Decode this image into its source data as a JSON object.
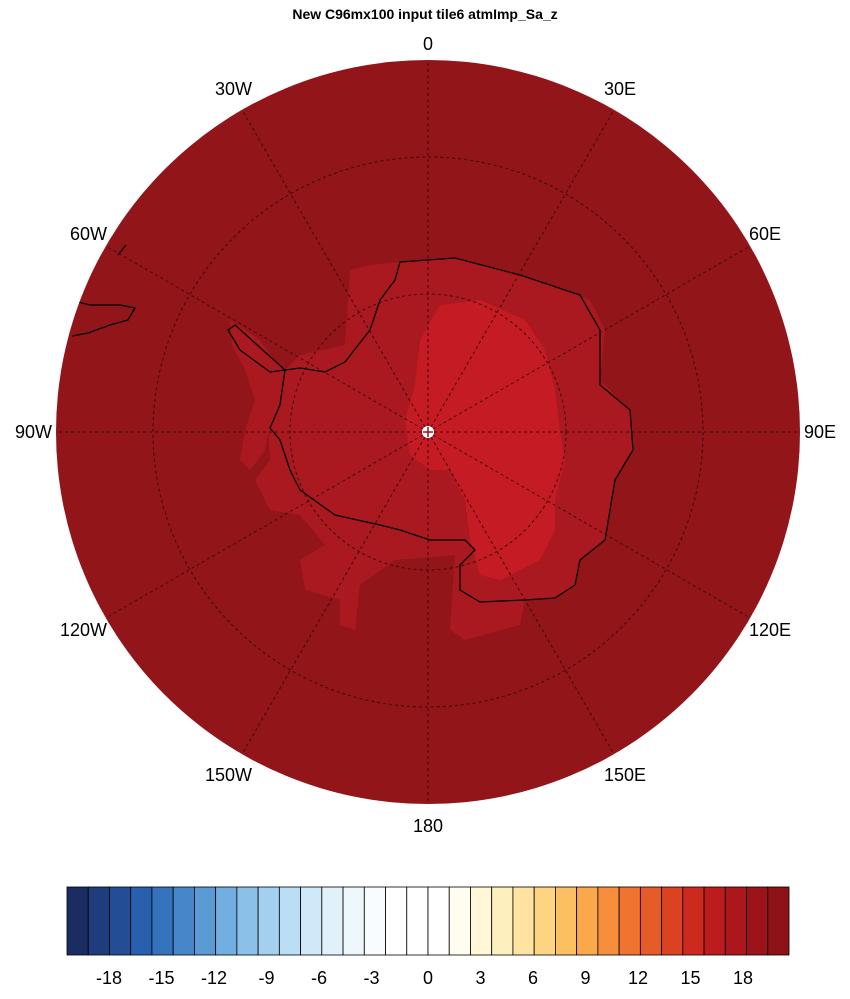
{
  "title": "New C96mx100 input tile6 atmImp_Sa_z",
  "map": {
    "projection": "south-polar-stereographic",
    "longitude_labels": [
      {
        "lon": 0,
        "text": "0"
      },
      {
        "lon": 30,
        "text": "30E"
      },
      {
        "lon": 60,
        "text": "60E"
      },
      {
        "lon": 90,
        "text": "90E"
      },
      {
        "lon": 120,
        "text": "120E"
      },
      {
        "lon": 150,
        "text": "150E"
      },
      {
        "lon": 180,
        "text": "180"
      },
      {
        "lon": -150,
        "text": "150W"
      },
      {
        "lon": -120,
        "text": "120W"
      },
      {
        "lon": -90,
        "text": "90W"
      },
      {
        "lon": -60,
        "text": "60W"
      },
      {
        "lon": -30,
        "text": "30W"
      }
    ],
    "colors": {
      "ocean_fill": "#921519",
      "land_outer": "#a9191f",
      "land_inner": "#c41b24",
      "coastline": "#000000",
      "grid": "#3a0a0c"
    }
  },
  "colorbar": {
    "ticks": [
      "-18",
      "-15",
      "-12",
      "-9",
      "-6",
      "-3",
      "0",
      "3",
      "6",
      "9",
      "12",
      "15",
      "18"
    ],
    "colors": [
      "#1b2c62",
      "#1f3d7d",
      "#234e96",
      "#2660ae",
      "#3573bd",
      "#4787c9",
      "#5b9bd5",
      "#72aee0",
      "#8bc0e8",
      "#a3d0ef",
      "#badff5",
      "#cfe9f8",
      "#e1f1fa",
      "#eef8fc",
      "#f8fcfe",
      "#ffffff",
      "#ffffff",
      "#ffffff",
      "#fffdf0",
      "#fff7d6",
      "#feefbf",
      "#fee4a0",
      "#fdd481",
      "#fcc063",
      "#faa84a",
      "#f78e3c",
      "#f07430",
      "#e65c28",
      "#da4222",
      "#cc2a1f",
      "#bd1c1d",
      "#ac171c",
      "#9c141a",
      "#8e1218"
    ]
  }
}
